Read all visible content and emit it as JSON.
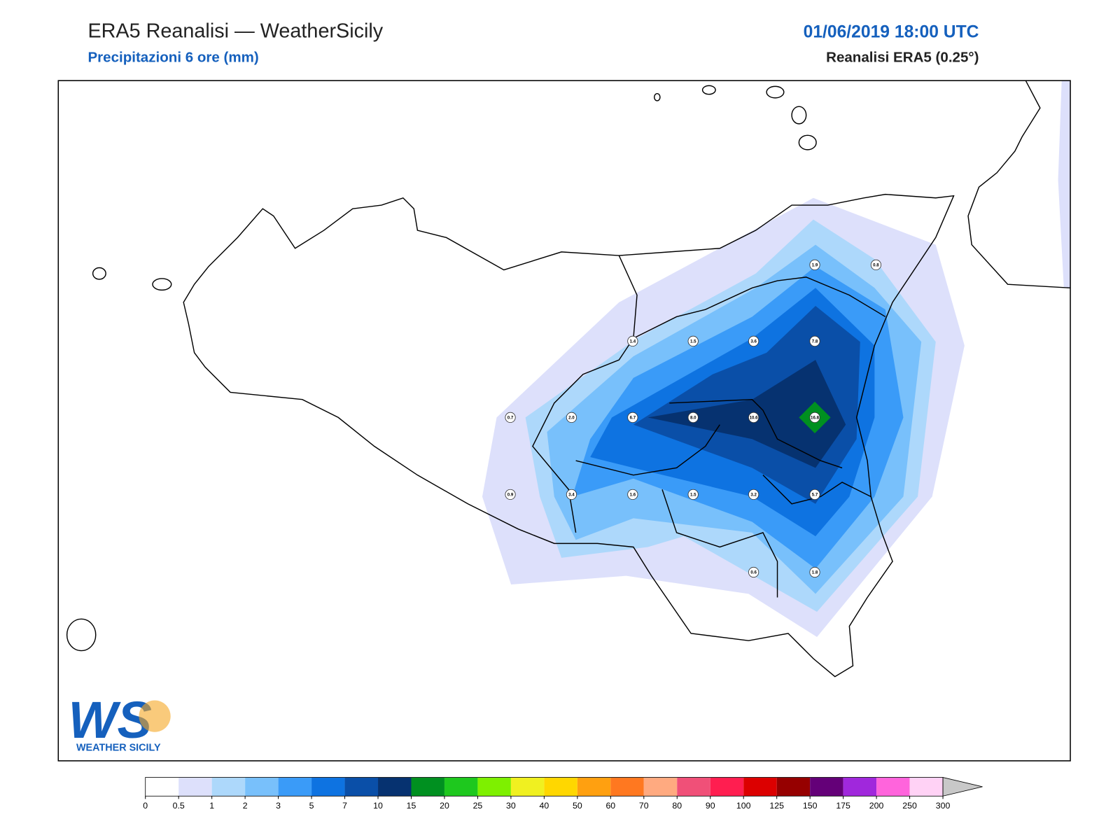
{
  "header": {
    "title": "ERA5 Reanalisi — WeatherSicily",
    "subtitle": "Precipitazioni 6 ore (mm)",
    "datetime": "01/06/2019 18:00 UTC",
    "model": "Reanalisi ERA5 (0.25°)"
  },
  "stations": [
    1.9,
    0.8,
    1.4,
    1.5,
    3.6,
    7.8,
    0.7,
    {
      "value": 2,
      "label": "2.0"
    },
    6.7,
    {
      "value": 8,
      "label": "8.0"
    },
    10.6,
    16.8,
    0.9,
    3.4,
    1.6,
    1.5,
    3.2,
    5.7,
    0.6,
    1.8
  ],
  "colorbar": {
    "levels": [
      0,
      0.5,
      1,
      2,
      3,
      5,
      7,
      10,
      15,
      20,
      25,
      30,
      40,
      50,
      60,
      70,
      80,
      90,
      100,
      125,
      150,
      175,
      200,
      250,
      300
    ],
    "colors": [
      "#ffffff",
      "#dde0fb",
      "#add8fb",
      "#78c0fb",
      "#3a9bf8",
      "#0e73e1",
      "#0a4fa8",
      "#063270",
      "#009020",
      "#1ec81e",
      "#7ef000",
      "#f0f020",
      "#ffd700",
      "#ffa010",
      "#ff7820",
      "#ffaa80",
      "#f05078",
      "#ff1e50",
      "#dc0000",
      "#960000",
      "#640078",
      "#a028dc",
      "#ff64dc",
      "#ffd2f5"
    ],
    "extend_color": "#c8c8c8"
  },
  "logo": {
    "mark": "WS",
    "text": "WEATHER SICILY"
  }
}
